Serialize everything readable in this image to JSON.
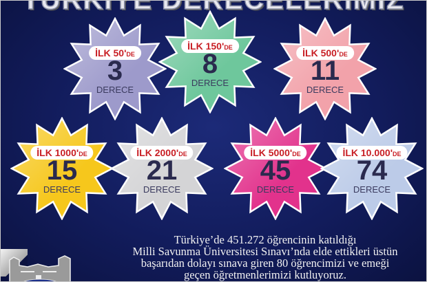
{
  "title": "TÜRKİYE DERECELERİMİZ",
  "stars": [
    {
      "rank_prefix": "İLK 50'",
      "suffix": "DE",
      "count": "3",
      "unit": "DERECE",
      "color": "#9d9acb"
    },
    {
      "rank_prefix": "İLK 150'",
      "suffix": "DE",
      "count": "8",
      "unit": "DERECE",
      "color": "#6ec79c"
    },
    {
      "rank_prefix": "İLK 500'",
      "suffix": "DE",
      "count": "11",
      "unit": "DERECE",
      "color": "#f2a2aa"
    },
    {
      "rank_prefix": "İLK 1000'",
      "suffix": "DE",
      "count": "15",
      "unit": "DERECE",
      "color": "#f6c71c"
    },
    {
      "rank_prefix": "İLK 2000'",
      "suffix": "DE",
      "count": "21",
      "unit": "DERECE",
      "color": "#d4d4d6"
    },
    {
      "rank_prefix": "İLK 5000'",
      "suffix": "DE",
      "count": "45",
      "unit": "DERECE",
      "color": "#e2328c"
    },
    {
      "rank_prefix": "İLK 10.000'",
      "suffix": "DE",
      "count": "74",
      "unit": "DERECE",
      "color": "#bccbe8"
    }
  ],
  "message": [
    "Türkiye’de 451.272 öğrencinin katıldığı",
    "Milli Savunma Üniversitesi Sınavı’nda elde ettikleri üstün",
    "başarıdan dolayı sınava giren 80 öğrencimizi ve emeği",
    "geçen öğretmenlerimizi kutluyoruz."
  ]
}
